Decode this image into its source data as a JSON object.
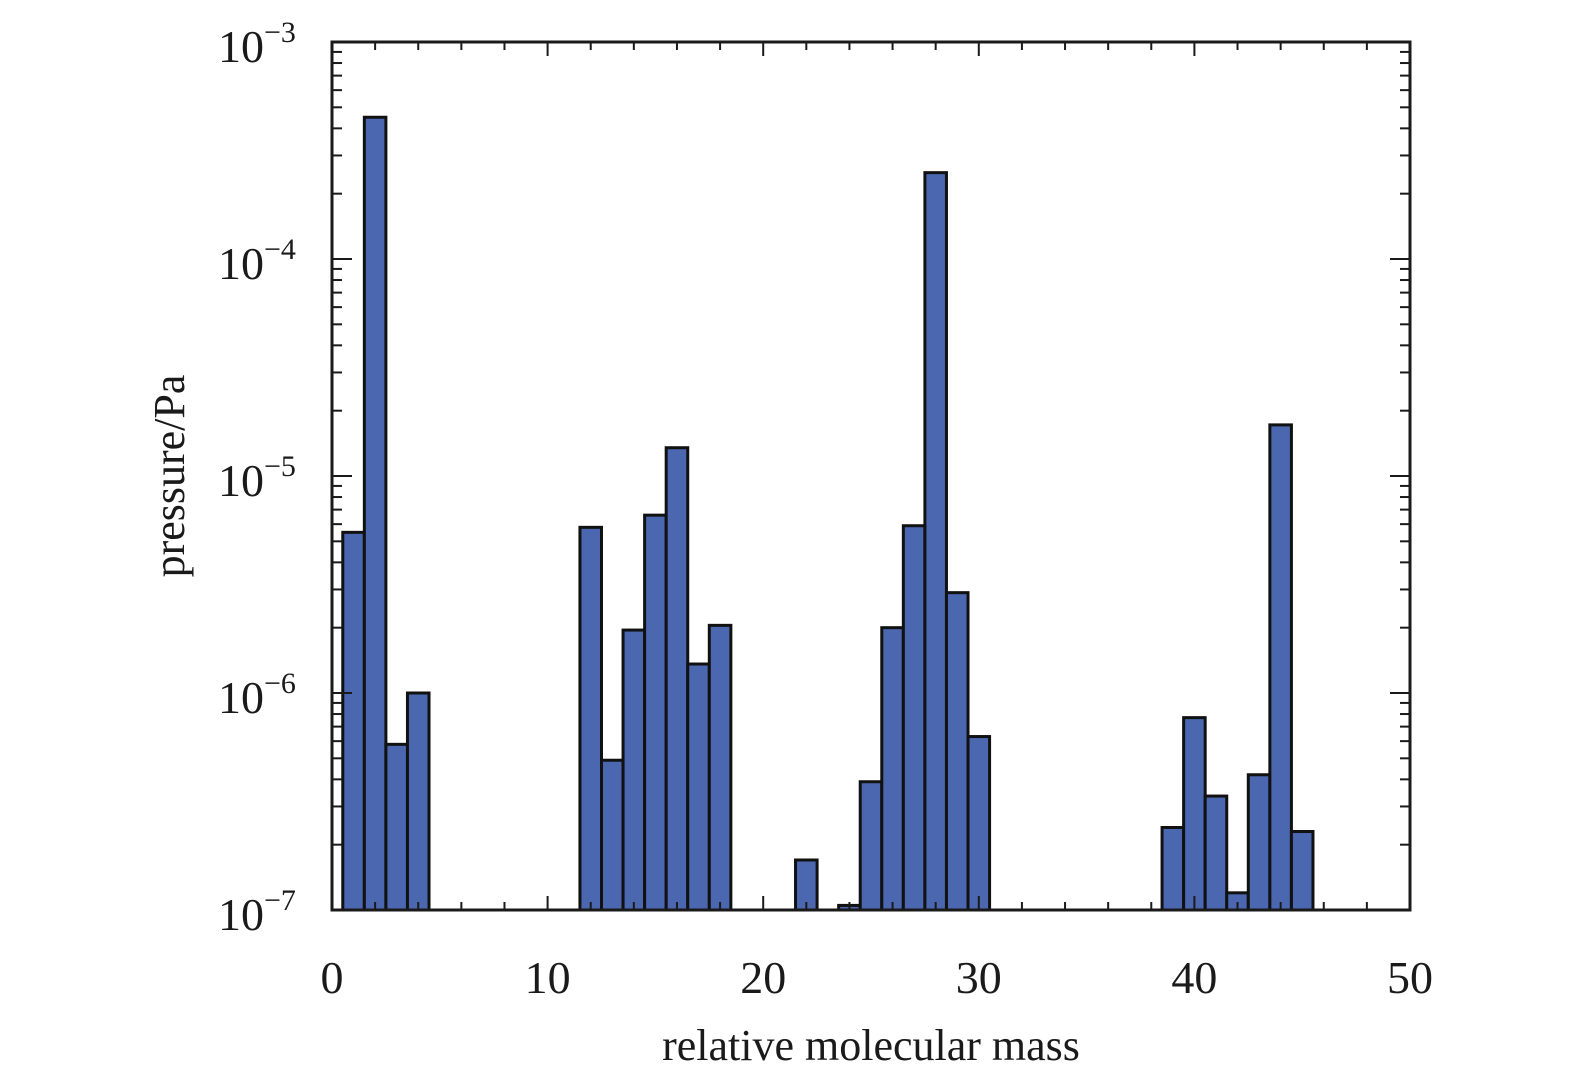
{
  "chart_data": {
    "type": "bar",
    "title": "",
    "xlabel": "relative molecular mass",
    "ylabel": "pressure/Pa",
    "xlim": [
      0,
      50
    ],
    "ylim": [
      1e-07,
      0.001
    ],
    "yscale": "log",
    "grid": false,
    "bar_color": "#4a67b0",
    "edge_color": "#111111",
    "x_ticks": [
      {
        "value": 0,
        "label": "0"
      },
      {
        "value": 10,
        "label": "10"
      },
      {
        "value": 20,
        "label": "20"
      },
      {
        "value": 30,
        "label": "30"
      },
      {
        "value": 40,
        "label": "40"
      },
      {
        "value": 50,
        "label": "50"
      }
    ],
    "y_ticks": [
      {
        "value": 1e-07,
        "base": "10",
        "exp": "−7"
      },
      {
        "value": 1e-06,
        "base": "10",
        "exp": "−6"
      },
      {
        "value": 1e-05,
        "base": "10",
        "exp": "−5"
      },
      {
        "value": 0.0001,
        "base": "10",
        "exp": "−4"
      },
      {
        "value": 0.001,
        "base": "10",
        "exp": "−3"
      }
    ],
    "x": [
      1,
      2,
      3,
      4,
      12,
      13,
      14,
      15,
      16,
      17,
      18,
      22,
      24,
      25,
      26,
      27,
      28,
      29,
      30,
      39,
      40,
      41,
      42,
      43,
      44,
      45
    ],
    "values": [
      5.5e-06,
      0.00045,
      5.8e-07,
      1e-06,
      5.8e-06,
      4.9e-07,
      1.95e-06,
      6.6e-06,
      1.35e-05,
      1.36e-06,
      2.05e-06,
      1.7e-07,
      1.05e-07,
      3.9e-07,
      2e-06,
      5.9e-06,
      0.00025,
      2.9e-06,
      6.3e-07,
      2.4e-07,
      7.7e-07,
      3.35e-07,
      1.2e-07,
      4.2e-07,
      1.72e-05,
      2.3e-07
    ]
  }
}
